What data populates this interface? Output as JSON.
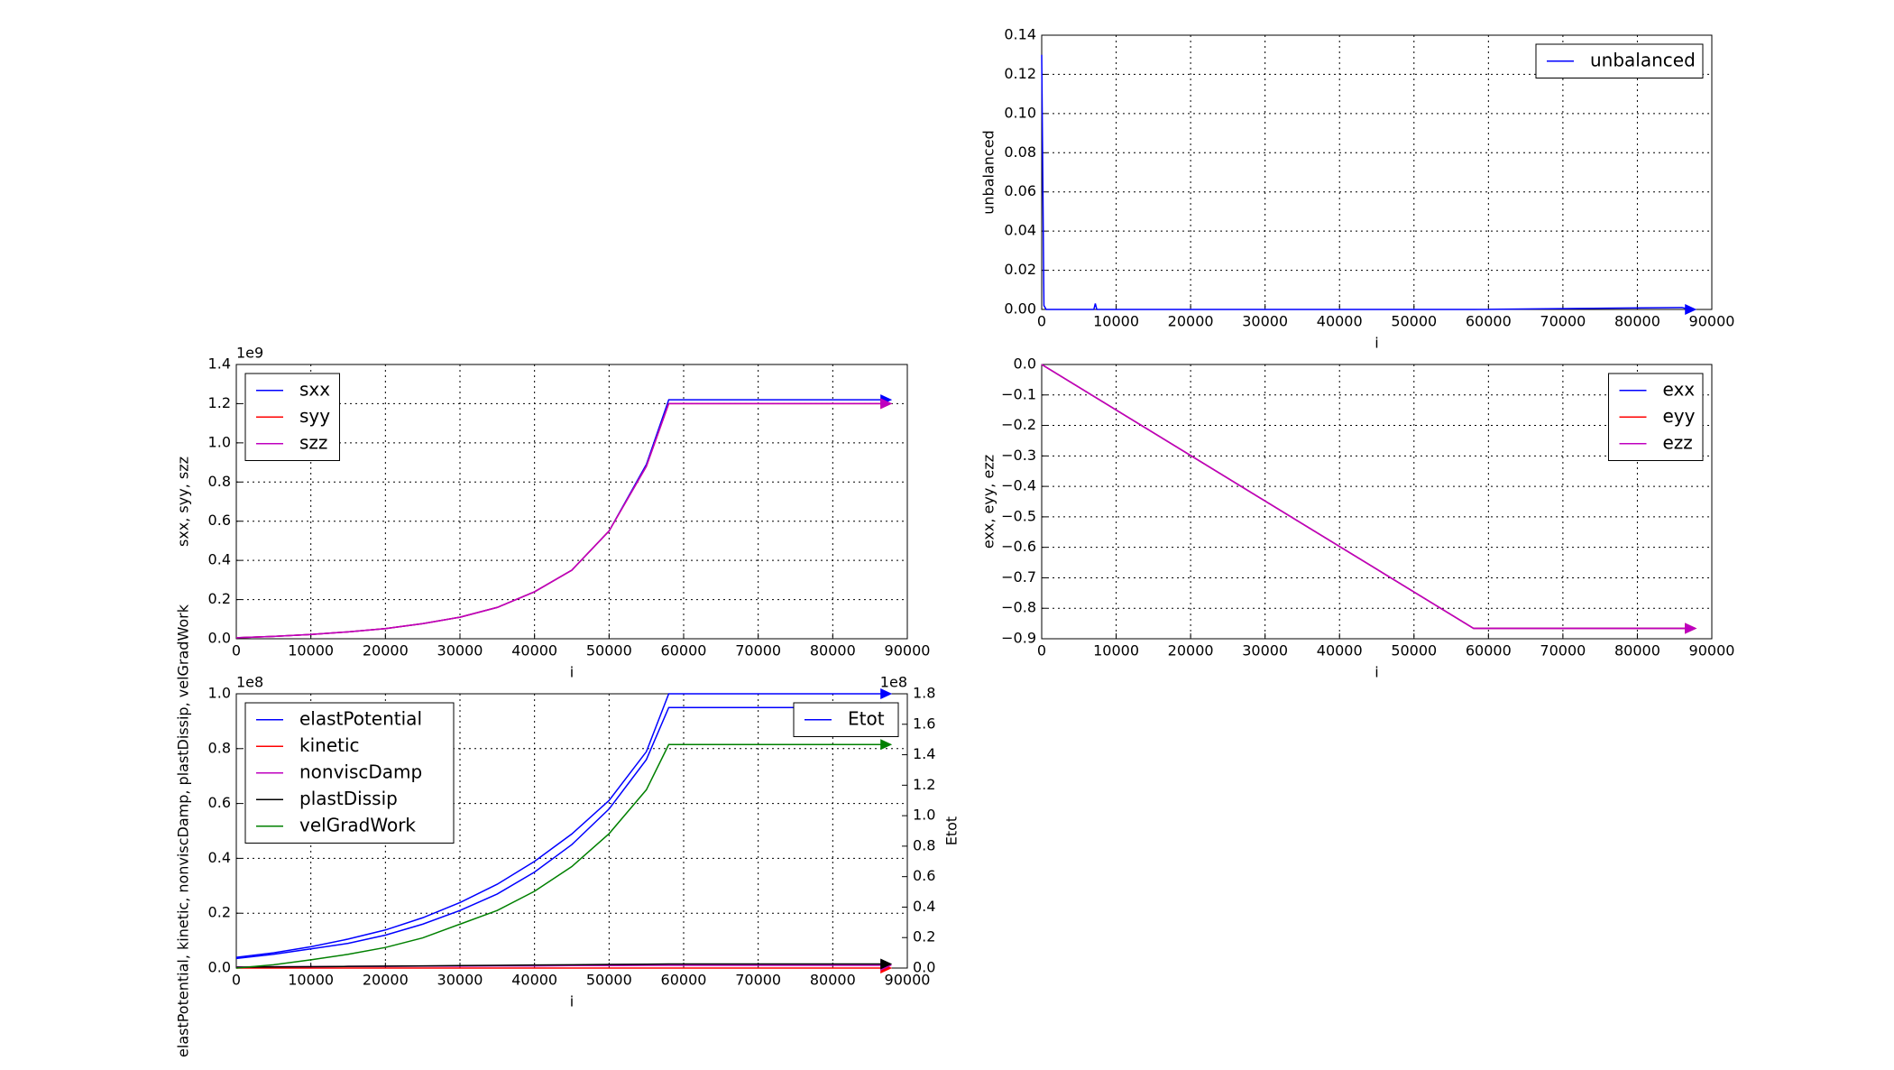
{
  "chart_data": [
    {
      "type": "line",
      "xlabel": "i",
      "ylabel": "unbalanced",
      "x": [
        0,
        300,
        600,
        7000,
        7200,
        7400,
        58000,
        86000,
        87000
      ],
      "series": [
        {
          "name": "unbalanced",
          "color": "#0000ff",
          "values": [
            0.13,
            0.002,
            0,
            0,
            0.003,
            0,
            0,
            0.001,
            0
          ]
        }
      ],
      "xlim": [
        0,
        90000
      ],
      "ylim": [
        0,
        0.14
      ],
      "xticks": [
        0,
        10000,
        20000,
        30000,
        40000,
        50000,
        60000,
        70000,
        80000,
        90000
      ],
      "yticks": [
        {
          "value": 0,
          "label": "0.00"
        },
        0.02,
        0.04,
        0.06,
        0.08,
        {
          "value": 0.1,
          "label": "0.10"
        },
        0.12,
        0.14
      ],
      "grid": true,
      "legend": "upper right"
    },
    {
      "type": "line",
      "xlabel": "i",
      "ylabel": "sxx, syy, szz",
      "offset_label": "1e9",
      "x": [
        0,
        5000,
        10000,
        15000,
        20000,
        25000,
        30000,
        35000,
        40000,
        45000,
        50000,
        55000,
        58000,
        87000
      ],
      "series": [
        {
          "name": "sxx",
          "color": "#0000ff",
          "values": [
            0.005,
            0.012,
            0.022,
            0.035,
            0.052,
            0.077,
            0.11,
            0.16,
            0.24,
            0.35,
            0.55,
            0.89,
            1.22,
            1.22
          ]
        },
        {
          "name": "syy",
          "color": "#ff0000",
          "values": [
            0.005,
            0.012,
            0.022,
            0.035,
            0.052,
            0.077,
            0.11,
            0.16,
            0.24,
            0.35,
            0.55,
            0.88,
            1.2,
            1.2
          ]
        },
        {
          "name": "szz",
          "color": "#bf00bf",
          "values": [
            0.005,
            0.012,
            0.022,
            0.035,
            0.052,
            0.077,
            0.11,
            0.16,
            0.24,
            0.35,
            0.55,
            0.88,
            1.2,
            1.2
          ]
        }
      ],
      "xlim": [
        0,
        90000
      ],
      "ylim": [
        0,
        1.4
      ],
      "xticks": [
        0,
        10000,
        20000,
        30000,
        40000,
        50000,
        60000,
        70000,
        80000,
        90000
      ],
      "yticks": [
        {
          "value": 0,
          "label": "0.0"
        },
        0.2,
        0.4,
        0.6,
        0.8,
        {
          "value": 1,
          "label": "1.0"
        },
        1.2,
        1.4
      ],
      "grid": true,
      "legend": "upper left"
    },
    {
      "type": "line",
      "xlabel": "i",
      "ylabel": "exx, eyy, ezz",
      "x": [
        0,
        58000,
        87000
      ],
      "series": [
        {
          "name": "exx",
          "color": "#0000ff",
          "values": [
            0,
            -0.866,
            -0.866
          ]
        },
        {
          "name": "eyy",
          "color": "#ff0000",
          "values": [
            0,
            -0.866,
            -0.866
          ]
        },
        {
          "name": "ezz",
          "color": "#bf00bf",
          "values": [
            0,
            -0.866,
            -0.866
          ]
        }
      ],
      "xlim": [
        0,
        90000
      ],
      "ylim": [
        -0.9,
        0
      ],
      "xticks": [
        0,
        10000,
        20000,
        30000,
        40000,
        50000,
        60000,
        70000,
        80000,
        90000
      ],
      "yticks": [
        {
          "value": 0,
          "label": "0.0"
        },
        {
          "value": -0.1,
          "label": "−0.1"
        },
        {
          "value": -0.2,
          "label": "−0.2"
        },
        {
          "value": -0.3,
          "label": "−0.3"
        },
        {
          "value": -0.4,
          "label": "−0.4"
        },
        {
          "value": -0.5,
          "label": "−0.5"
        },
        {
          "value": -0.6,
          "label": "−0.6"
        },
        {
          "value": -0.7,
          "label": "−0.7"
        },
        {
          "value": -0.8,
          "label": "−0.8"
        },
        {
          "value": -0.9,
          "label": "−0.9"
        }
      ],
      "grid": true,
      "legend": "upper right"
    },
    {
      "type": "line",
      "xlabel": "i",
      "ylabel": "elastPotential, kinetic, nonviscDamp, plastDissip, velGradWork",
      "offset_label": "1e8",
      "y2label": "Etot",
      "y2_offset_label": "1e8",
      "x": [
        0,
        5000,
        10000,
        15000,
        20000,
        25000,
        30000,
        35000,
        40000,
        45000,
        50000,
        55000,
        58000,
        87000
      ],
      "series": [
        {
          "name": "elastPotential",
          "color": "#0000ff",
          "values": [
            0.035,
            0.05,
            0.07,
            0.09,
            0.12,
            0.16,
            0.21,
            0.27,
            0.35,
            0.45,
            0.58,
            0.76,
            0.95,
            0.95
          ]
        },
        {
          "name": "kinetic",
          "color": "#ff0000",
          "values": [
            0,
            0,
            0,
            0,
            0,
            0,
            0,
            0,
            0,
            0,
            0,
            0,
            0,
            0
          ]
        },
        {
          "name": "nonviscDamp",
          "color": "#bf00bf",
          "values": [
            0.004,
            0.005,
            0.005,
            0.006,
            0.006,
            0.007,
            0.007,
            0.008,
            0.008,
            0.009,
            0.009,
            0.01,
            0.01,
            0.01
          ]
        },
        {
          "name": "plastDissip",
          "color": "#000000",
          "values": [
            0.003,
            0.004,
            0.005,
            0.006,
            0.007,
            0.008,
            0.009,
            0.01,
            0.011,
            0.012,
            0.013,
            0.014,
            0.015,
            0.015
          ]
        },
        {
          "name": "velGradWork",
          "color": "#008000",
          "values": [
            0,
            0.012,
            0.03,
            0.05,
            0.075,
            0.11,
            0.16,
            0.21,
            0.28,
            0.37,
            0.49,
            0.65,
            0.815,
            0.815
          ]
        },
        {
          "name": "Etot",
          "color": "#0000ff",
          "axis": "y2",
          "values": [
            0.07,
            0.1,
            0.14,
            0.19,
            0.25,
            0.33,
            0.43,
            0.55,
            0.7,
            0.88,
            1.1,
            1.42,
            1.8,
            1.8
          ]
        }
      ],
      "xlim": [
        0,
        90000
      ],
      "ylim": [
        0,
        1
      ],
      "y2lim": [
        0,
        1.8
      ],
      "xticks": [
        0,
        10000,
        20000,
        30000,
        40000,
        50000,
        60000,
        70000,
        80000,
        90000
      ],
      "yticks": [
        {
          "value": 0,
          "label": "0.0"
        },
        0.2,
        0.4,
        0.6,
        0.8,
        {
          "value": 1,
          "label": "1.0"
        }
      ],
      "y2ticks": [
        {
          "value": 0,
          "label": "0.0"
        },
        0.2,
        0.4,
        0.6,
        0.8,
        {
          "value": 1,
          "label": "1.0"
        },
        1.2,
        1.4,
        1.6,
        1.8
      ],
      "grid": true,
      "legend": "upper left",
      "y2_legend": "upper right"
    }
  ]
}
